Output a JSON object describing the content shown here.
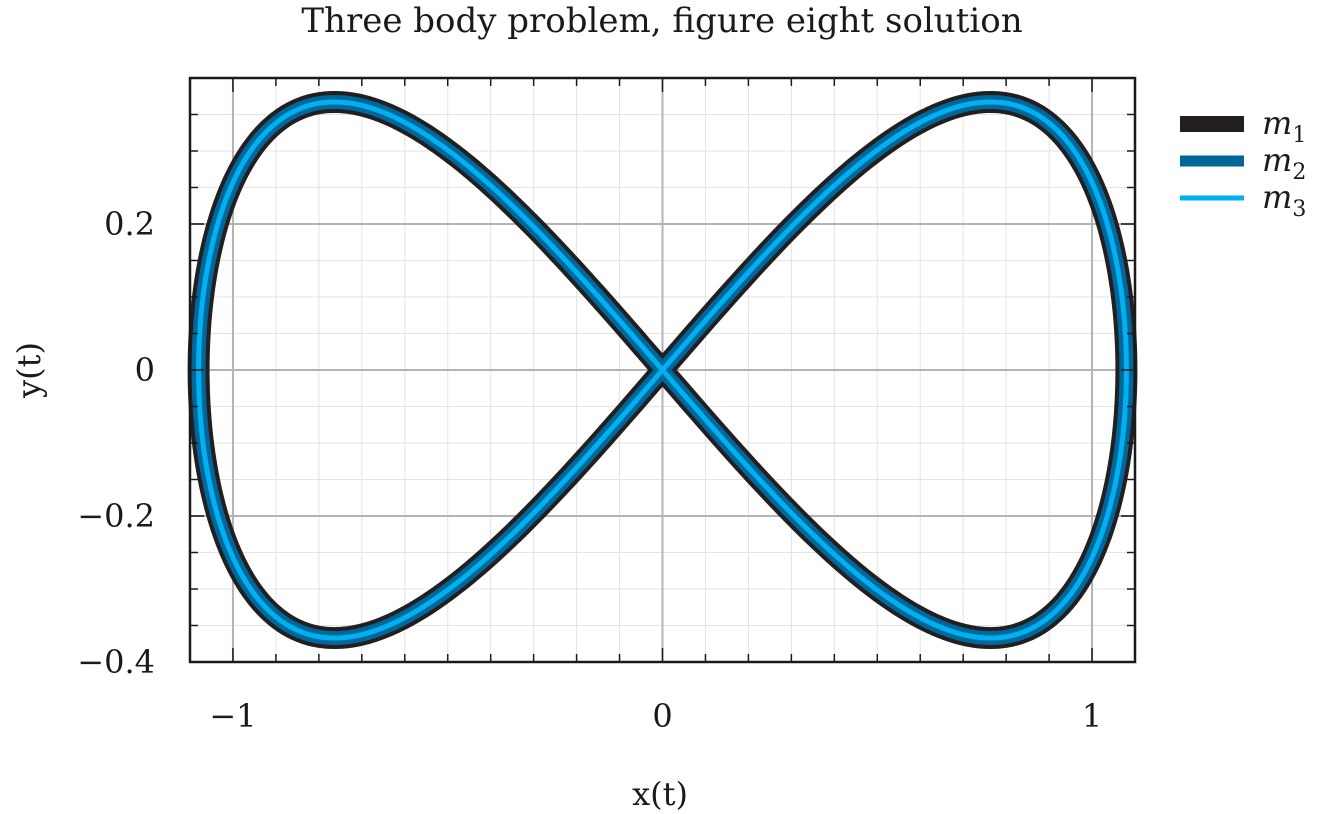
{
  "chart_data": {
    "type": "line",
    "title": "Three body problem, figure eight solution",
    "xlabel": "x(t)",
    "ylabel": "y(t)",
    "xlim": [
      -1.1,
      1.1
    ],
    "ylim": [
      -0.4,
      0.4
    ],
    "x_ticks": [
      -1,
      0,
      1
    ],
    "x_tick_labels": [
      "−1",
      "0",
      "1"
    ],
    "y_ticks": [
      -0.4,
      -0.2,
      0,
      0.2
    ],
    "y_tick_labels": [
      "−0.4",
      "−0.2",
      "0",
      "0.2"
    ],
    "grid": true,
    "minor_grid": true,
    "legend": "outside-right",
    "curve": {
      "shape": "figure-eight",
      "x_amplitude": 1.08,
      "y_amplitude": 0.36,
      "samples": 400
    },
    "series": [
      {
        "name": "m",
        "subscript": "1",
        "color": "#231f20",
        "key": "m1"
      },
      {
        "name": "m",
        "subscript": "2",
        "color": "#00679a",
        "key": "m2"
      },
      {
        "name": "m",
        "subscript": "3",
        "color": "#00b0f0",
        "key": "m3"
      }
    ]
  }
}
